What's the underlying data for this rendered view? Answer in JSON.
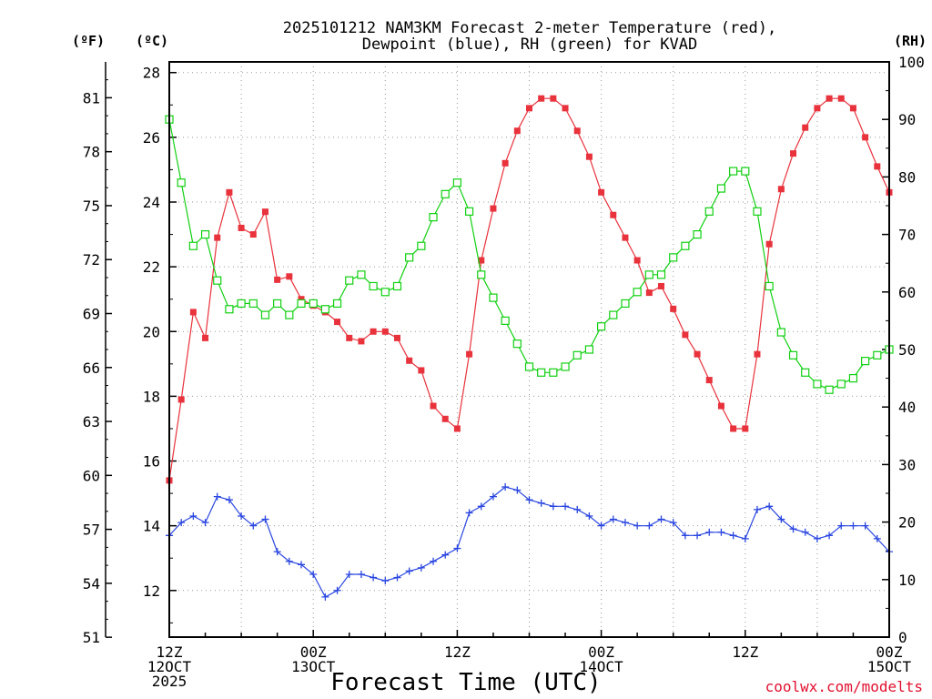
{
  "chart_data": {
    "type": "line",
    "title": "2025101212 NAM3KM Forecast 2-meter Temperature (red),",
    "title_line2": "Dewpoint (blue), RH (green) for KVAD",
    "xlabel": "Forecast Time (UTC)",
    "credit": "coolwx.com/modelts",
    "units": {
      "fahrenheit": "(ºF)",
      "celsius": "(ºC)",
      "rh": "(RH)"
    },
    "x_hours_range": [
      0,
      60
    ],
    "celsius_range": [
      10.56,
      28.33
    ],
    "rh_range": [
      0,
      100
    ],
    "x_ticks": [
      {
        "hour": 0,
        "line1": "12Z",
        "line2": "12OCT",
        "line3": "2025"
      },
      {
        "hour": 12,
        "line1": "00Z",
        "line2": "13OCT",
        "line3": ""
      },
      {
        "hour": 24,
        "line1": "12Z",
        "line2": "",
        "line3": ""
      },
      {
        "hour": 36,
        "line1": "00Z",
        "line2": "14OCT",
        "line3": ""
      },
      {
        "hour": 48,
        "line1": "12Z",
        "line2": "",
        "line3": ""
      },
      {
        "hour": 60,
        "line1": "00Z",
        "line2": "15OCT",
        "line3": ""
      }
    ],
    "celsius_ticks": [
      12,
      14,
      16,
      18,
      20,
      22,
      24,
      26,
      28
    ],
    "fahrenheit_ticks": [
      51,
      54,
      57,
      60,
      63,
      66,
      69,
      72,
      75,
      78,
      81
    ],
    "rh_ticks": [
      0,
      10,
      20,
      30,
      40,
      50,
      60,
      70,
      80,
      90,
      100
    ],
    "series": [
      {
        "name": "2-meter Temperature",
        "unit": "C",
        "color": "#e8323c",
        "marker": "filled-square",
        "values": [
          15.4,
          17.9,
          20.6,
          19.8,
          22.9,
          24.3,
          23.2,
          23.0,
          23.7,
          21.6,
          21.7,
          21.0,
          20.8,
          20.6,
          20.3,
          19.8,
          19.7,
          20.0,
          20.0,
          19.8,
          19.1,
          18.8,
          17.7,
          17.3,
          17.0,
          19.3,
          22.2,
          23.8,
          25.2,
          26.2,
          26.9,
          27.2,
          27.2,
          26.9,
          26.2,
          25.4,
          24.3,
          23.6,
          22.9,
          22.2,
          21.2,
          21.4,
          20.7,
          19.9,
          19.3,
          18.5,
          17.7,
          17.0,
          17.0,
          19.3,
          22.7,
          24.4,
          25.5,
          26.3,
          26.9,
          27.2,
          27.2,
          26.9,
          26.0,
          25.1,
          24.3
        ]
      },
      {
        "name": "Dewpoint",
        "unit": "C",
        "color": "#2a46e0",
        "marker": "plus",
        "values": [
          13.7,
          14.1,
          14.3,
          14.1,
          14.9,
          14.8,
          14.3,
          14.0,
          14.2,
          13.2,
          12.9,
          12.8,
          12.5,
          11.8,
          12.0,
          12.5,
          12.5,
          12.4,
          12.3,
          12.4,
          12.6,
          12.7,
          12.9,
          13.1,
          13.3,
          14.4,
          14.6,
          14.9,
          15.2,
          15.1,
          14.8,
          14.7,
          14.6,
          14.6,
          14.5,
          14.3,
          14.0,
          14.2,
          14.1,
          14.0,
          14.0,
          14.2,
          14.1,
          13.7,
          13.7,
          13.8,
          13.8,
          13.7,
          13.6,
          14.5,
          14.6,
          14.2,
          13.9,
          13.8,
          13.6,
          13.7,
          14.0,
          14.0,
          14.0,
          13.6,
          13.2
        ]
      },
      {
        "name": "RH",
        "unit": "%",
        "color": "#10d010",
        "marker": "open-square",
        "values": [
          90,
          79,
          68,
          70,
          62,
          57,
          58,
          58,
          56,
          58,
          56,
          58,
          58,
          57,
          58,
          62,
          63,
          61,
          60,
          61,
          66,
          68,
          73,
          77,
          79,
          74,
          63,
          59,
          55,
          51,
          47,
          46,
          46,
          47,
          49,
          50,
          54,
          56,
          58,
          60,
          63,
          63,
          66,
          68,
          70,
          74,
          78,
          81,
          81,
          74,
          61,
          53,
          49,
          46,
          44,
          43,
          44,
          45,
          48,
          49,
          50
        ]
      }
    ]
  }
}
